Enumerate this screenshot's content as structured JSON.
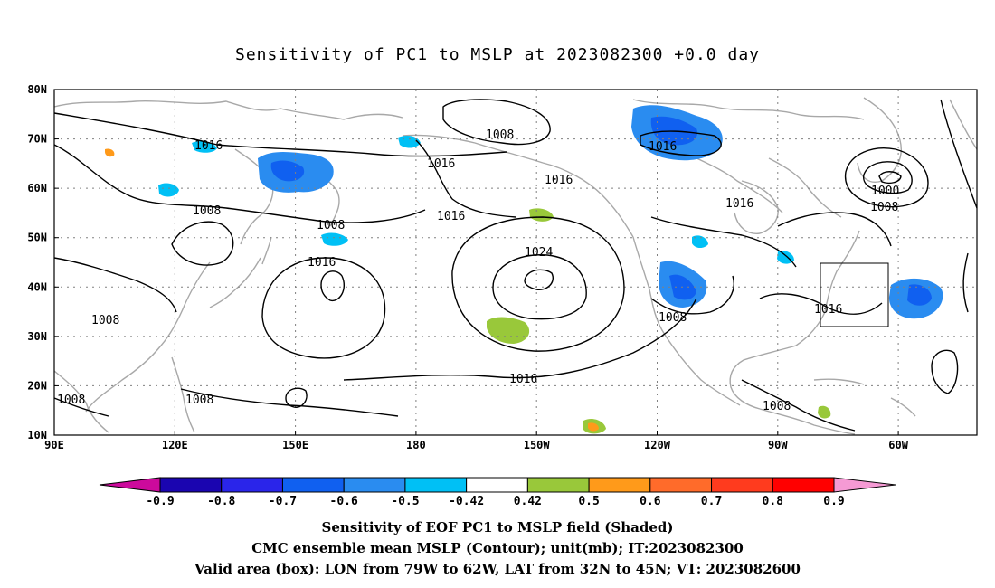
{
  "title": "Sensitivity of PC1 to MSLP at 2023082300 +0.0 day",
  "lat_labels": [
    "80N",
    "70N",
    "60N",
    "50N",
    "40N",
    "30N",
    "20N",
    "10N"
  ],
  "lon_labels": [
    "90E",
    "120E",
    "150E",
    "180",
    "150W",
    "120W",
    "90W",
    "60W"
  ],
  "contour_labels": [
    "1016",
    "1008",
    "1016",
    "1016",
    "1016",
    "1008",
    "1000",
    "1008",
    "1016",
    "1008",
    "1016",
    "1024",
    "1016",
    "1016",
    "1008",
    "1008",
    "1008",
    "1008",
    "1016",
    "1016",
    "1008"
  ],
  "colorbar": {
    "labels": [
      "-0.9",
      "-0.8",
      "-0.7",
      "-0.6",
      "-0.5",
      "-0.42",
      "0.42",
      "0.5",
      "0.6",
      "0.7",
      "0.8",
      "0.9"
    ],
    "colors": [
      "#cc0a9c",
      "#1a05b0",
      "#2a25ea",
      "#1060f0",
      "#2a8cf0",
      "#00c0f5",
      "#ffffff",
      "#99c83a",
      "#ff9a1a",
      "#ff6b2a",
      "#ff3b1e",
      "#ff0000",
      "#f59ad4"
    ]
  },
  "valid_box": {
    "lon_west": 79,
    "lon_east": 62,
    "lat_south": 32,
    "lat_north": 45
  },
  "captions": {
    "line1": "Sensitivity of EOF PC1 to MSLP field (Shaded)",
    "line2": "CMC ensemble mean MSLP (Contour); unit(mb); IT:2023082300",
    "line3": "Valid area (box): LON from 79W to 62W, LAT from 32N to 45N; VT: 2023082600"
  },
  "colors": {
    "contour": "#000000",
    "coast": "#a8a8a8",
    "grid": "#808080",
    "box": "#000000"
  }
}
